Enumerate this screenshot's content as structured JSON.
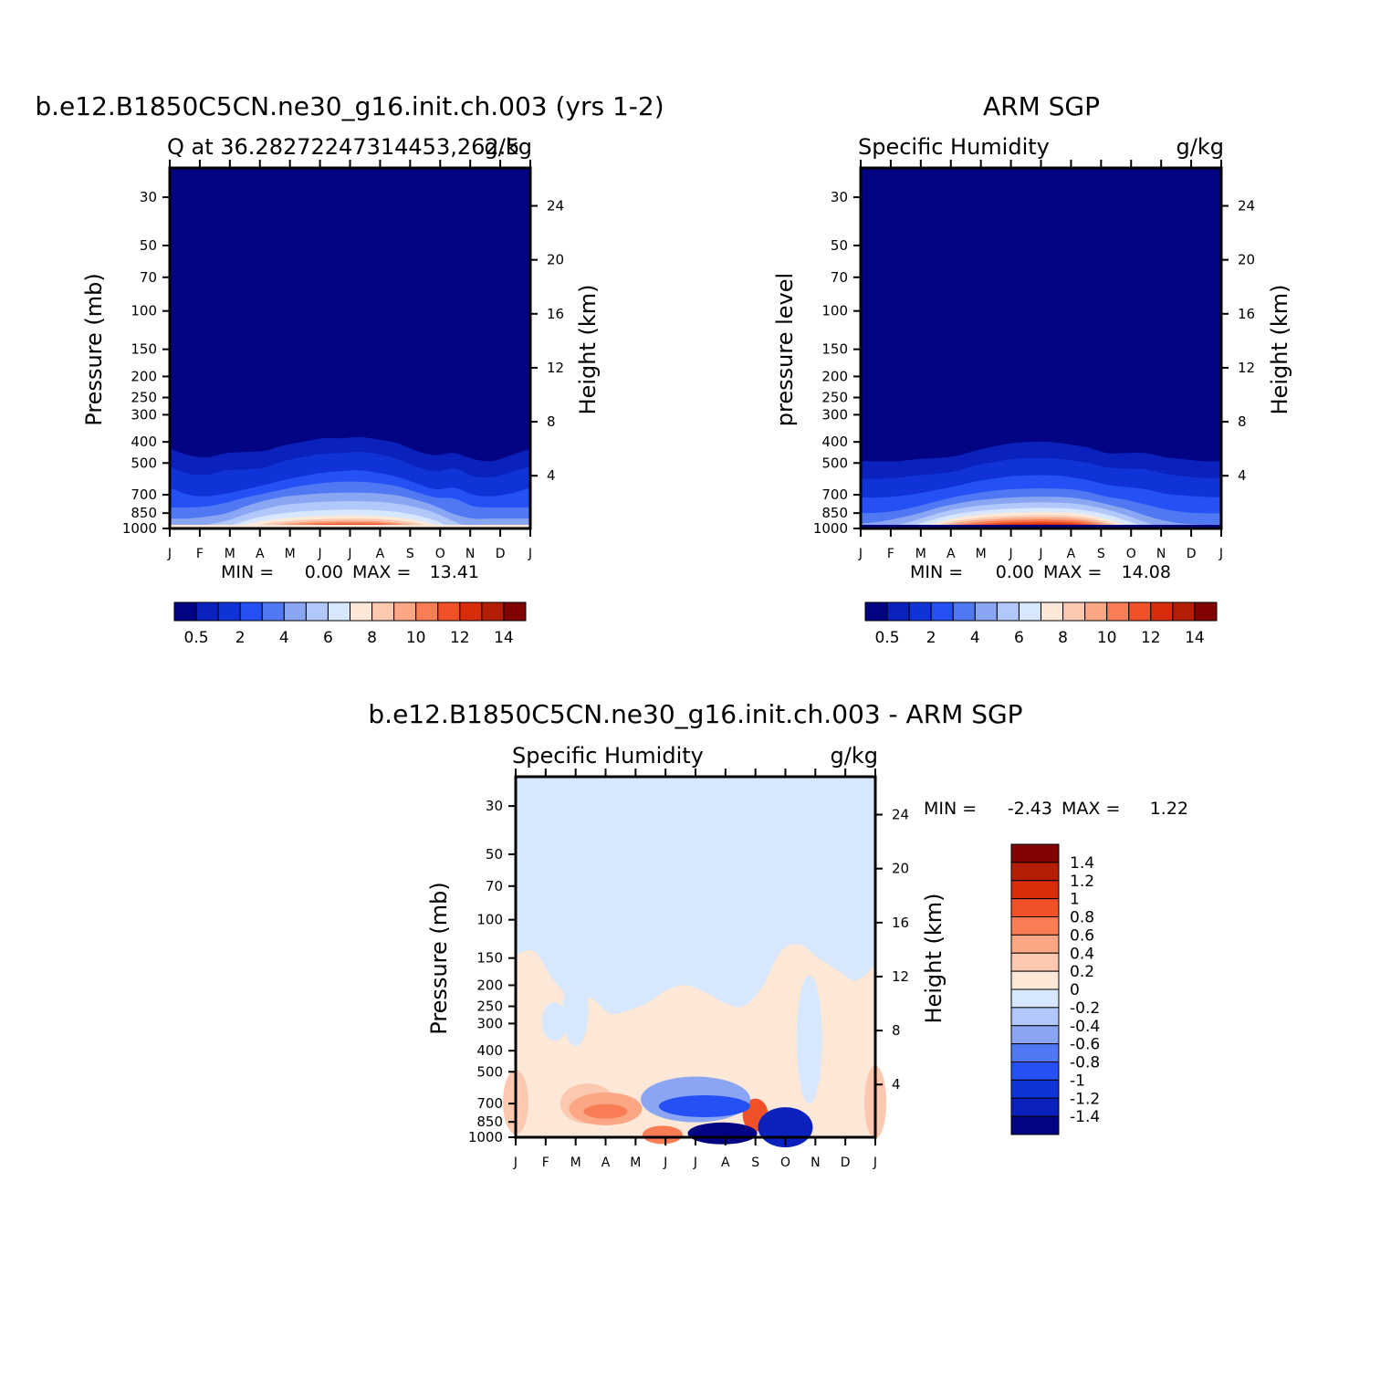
{
  "chart_data": [
    {
      "type": "contour",
      "panel": "model",
      "title": "b.e12.B1850C5CN.ne30_g16.init.ch.003 (yrs 1-2)",
      "subtitle_left": "Q at 36.28272247314453,262.5",
      "units": "g/kg",
      "ylabel": "Pressure (mb)",
      "ylabel_right": "Height (km)",
      "min_label": "MIN =",
      "min": "0.00",
      "max_label": "MAX =",
      "max": "13.41",
      "y_ticks": [
        "30",
        "50",
        "70",
        "100",
        "150",
        "200",
        "250",
        "300",
        "400",
        "500",
        "700",
        "850",
        "1000"
      ],
      "height_ticks": [
        "24",
        "20",
        "16",
        "12",
        "8",
        "4"
      ],
      "x_ticks": [
        "J",
        "F",
        "M",
        "A",
        "M",
        "J",
        "J",
        "A",
        "S",
        "O",
        "N",
        "D",
        "J"
      ],
      "colorbar_labels": [
        "0.5",
        "2",
        "4",
        "6",
        "8",
        "10",
        "12",
        "14"
      ],
      "colorbar_colors": [
        "#020483",
        "#0a21bb",
        "#0f33d6",
        "#2450f5",
        "#4f78f2",
        "#8aa6f3",
        "#b3c8fa",
        "#d7e8fe",
        "#fde7d7",
        "#fcc8af",
        "#fba684",
        "#f87d55",
        "#f05129",
        "#d92c0b",
        "#b31f05",
        "#800301"
      ],
      "bands_p": [
        [
          430,
          460,
          470,
          450,
          445,
          440,
          415,
          400,
          385,
          385,
          380,
          390,
          405,
          440,
          460,
          450,
          480,
          490,
          460,
          430
        ],
        [
          520,
          560,
          565,
          540,
          535,
          525,
          490,
          470,
          455,
          450,
          445,
          455,
          480,
          520,
          545,
          530,
          575,
          580,
          550,
          520
        ],
        [
          650,
          700,
          710,
          690,
          660,
          630,
          600,
          575,
          555,
          545,
          540,
          555,
          580,
          620,
          660,
          650,
          700,
          710,
          690,
          650
        ],
        [
          800,
          800,
          790,
          760,
          720,
          690,
          660,
          635,
          620,
          610,
          610,
          620,
          640,
          680,
          720,
          730,
          790,
          800,
          800,
          800
        ],
        [
          900,
          900,
          880,
          850,
          790,
          745,
          715,
          700,
          690,
          685,
          685,
          690,
          705,
          740,
          790,
          860,
          900,
          900,
          900,
          900
        ],
        [
          1000,
          1000,
          960,
          920,
          860,
          815,
          780,
          765,
          755,
          750,
          750,
          755,
          770,
          800,
          850,
          930,
          1000,
          1000,
          1000,
          1000
        ],
        [
          1000,
          1000,
          1000,
          980,
          920,
          875,
          850,
          835,
          825,
          820,
          820,
          825,
          840,
          870,
          920,
          1000,
          1000,
          1000,
          1000,
          1000
        ],
        [
          1000,
          1000,
          1000,
          1000,
          960,
          920,
          900,
          885,
          875,
          870,
          870,
          875,
          890,
          915,
          960,
          1000,
          1000,
          1000,
          1000,
          1000
        ],
        [
          1000,
          1000,
          1000,
          1000,
          1000,
          950,
          930,
          915,
          905,
          902,
          902,
          905,
          920,
          945,
          990,
          1000,
          1000,
          1000,
          1000,
          1000
        ],
        [
          1000,
          1000,
          1000,
          1000,
          1000,
          975,
          950,
          935,
          925,
          922,
          922,
          925,
          940,
          965,
          1000,
          1000,
          1000,
          1000,
          1000,
          1000
        ],
        [
          1000,
          1000,
          1000,
          1000,
          1000,
          990,
          965,
          950,
          940,
          937,
          937,
          940,
          955,
          980,
          1000,
          1000,
          1000,
          1000,
          1000,
          1000
        ],
        [
          1000,
          1000,
          1000,
          1000,
          1000,
          1000,
          980,
          965,
          955,
          952,
          952,
          955,
          970,
          995,
          1000,
          1000,
          1000,
          1000,
          1000,
          1000
        ],
        [
          1000,
          1000,
          1000,
          1000,
          1000,
          1000,
          992,
          980,
          970,
          967,
          967,
          970,
          985,
          1000,
          1000,
          1000,
          1000,
          1000,
          1000,
          1000
        ],
        [
          1000,
          1000,
          1000,
          1000,
          1000,
          1000,
          1000,
          995,
          988,
          985,
          985,
          988,
          1000,
          1000,
          1000,
          1000,
          1000,
          1000,
          1000,
          1000
        ]
      ],
      "bottom_fill": "#fde7d7"
    },
    {
      "type": "contour",
      "panel": "obs",
      "title": "ARM SGP",
      "subtitle_left": "Specific Humidity",
      "units": "g/kg",
      "ylabel": "pressure level",
      "ylabel_right": "Height (km)",
      "min_label": "MIN =",
      "min": "0.00",
      "max_label": "MAX =",
      "max": "14.08",
      "y_ticks": [
        "30",
        "50",
        "70",
        "100",
        "150",
        "200",
        "250",
        "300",
        "400",
        "500",
        "700",
        "850",
        "1000"
      ],
      "height_ticks": [
        "24",
        "20",
        "16",
        "12",
        "8",
        "4"
      ],
      "x_ticks": [
        "J",
        "F",
        "M",
        "A",
        "M",
        "J",
        "J",
        "A",
        "S",
        "O",
        "N",
        "D",
        "J"
      ],
      "colorbar_labels": [
        "0.5",
        "2",
        "4",
        "6",
        "8",
        "10",
        "12",
        "14"
      ],
      "colorbar_colors": [
        "#020483",
        "#0a21bb",
        "#0f33d6",
        "#2450f5",
        "#4f78f2",
        "#8aa6f3",
        "#b3c8fa",
        "#d7e8fe",
        "#fde7d7",
        "#fcc8af",
        "#fba684",
        "#f87d55",
        "#f05129",
        "#d92c0b",
        "#b31f05",
        "#800301"
      ],
      "bands_p": [
        [
          490,
          490,
          490,
          480,
          475,
          465,
          440,
          420,
          405,
          400,
          400,
          410,
          425,
          450,
          450,
          450,
          470,
          480,
          490,
          490
        ],
        [
          590,
          590,
          585,
          570,
          560,
          545,
          515,
          495,
          480,
          475,
          475,
          485,
          500,
          525,
          530,
          535,
          560,
          575,
          585,
          590
        ],
        [
          720,
          720,
          710,
          690,
          665,
          640,
          610,
          590,
          575,
          570,
          570,
          580,
          600,
          630,
          645,
          660,
          690,
          705,
          715,
          720
        ],
        [
          850,
          845,
          825,
          790,
          750,
          715,
          690,
          670,
          660,
          655,
          655,
          660,
          680,
          715,
          740,
          775,
          815,
          840,
          850,
          850
        ],
        [
          950,
          930,
          895,
          855,
          805,
          770,
          745,
          730,
          720,
          715,
          715,
          720,
          740,
          775,
          815,
          870,
          920,
          950,
          960,
          960
        ],
        [
          1000,
          1000,
          960,
          910,
          855,
          815,
          790,
          775,
          765,
          760,
          760,
          765,
          785,
          820,
          870,
          935,
          990,
          1000,
          1000,
          1000
        ],
        [
          1000,
          1000,
          1000,
          955,
          900,
          860,
          835,
          820,
          810,
          805,
          805,
          810,
          830,
          865,
          920,
          985,
          1000,
          1000,
          1000,
          1000
        ],
        [
          1000,
          1000,
          1000,
          990,
          940,
          895,
          870,
          855,
          845,
          840,
          840,
          845,
          865,
          905,
          960,
          1000,
          1000,
          1000,
          1000,
          1000
        ],
        [
          1000,
          1000,
          1000,
          1000,
          970,
          925,
          900,
          885,
          875,
          870,
          870,
          875,
          895,
          935,
          990,
          1000,
          1000,
          1000,
          1000,
          1000
        ],
        [
          1000,
          1000,
          1000,
          1000,
          990,
          945,
          920,
          905,
          895,
          890,
          890,
          895,
          915,
          955,
          1000,
          1000,
          1000,
          1000,
          1000,
          1000
        ],
        [
          1000,
          1000,
          1000,
          1000,
          1000,
          965,
          940,
          925,
          915,
          910,
          910,
          915,
          935,
          975,
          1000,
          1000,
          1000,
          1000,
          1000,
          1000
        ],
        [
          1000,
          1000,
          1000,
          1000,
          1000,
          985,
          960,
          945,
          935,
          930,
          930,
          935,
          955,
          990,
          1000,
          1000,
          1000,
          1000,
          1000,
          1000
        ],
        [
          1000,
          1000,
          1000,
          1000,
          1000,
          1000,
          978,
          962,
          952,
          948,
          948,
          952,
          972,
          1000,
          1000,
          1000,
          1000,
          1000,
          1000,
          1000
        ],
        [
          1000,
          1000,
          1000,
          1000,
          1000,
          1000,
          992,
          978,
          968,
          962,
          962,
          968,
          988,
          1000,
          1000,
          1000,
          1000,
          1000,
          1000,
          1000
        ],
        [
          1000,
          1000,
          1000,
          1000,
          1000,
          1000,
          1000,
          992,
          984,
          978,
          978,
          984,
          1000,
          1000,
          1000,
          1000,
          1000,
          1000,
          1000,
          1000
        ]
      ],
      "bottom_fill": "#020483"
    },
    {
      "type": "contour",
      "panel": "difference",
      "title": "b.e12.B1850C5CN.ne30_g16.init.ch.003 - ARM SGP",
      "subtitle_left": "Specific Humidity",
      "units": "g/kg",
      "ylabel": "Pressure (mb)",
      "ylabel_right": "Height (km)",
      "min_label": "MIN =",
      "min": "-2.43",
      "max_label": "MAX =",
      "max": "1.22",
      "y_ticks": [
        "30",
        "50",
        "70",
        "100",
        "150",
        "200",
        "250",
        "300",
        "400",
        "500",
        "700",
        "850",
        "1000"
      ],
      "height_ticks": [
        "24",
        "20",
        "16",
        "12",
        "8",
        "4"
      ],
      "x_ticks": [
        "J",
        "F",
        "M",
        "A",
        "M",
        "J",
        "J",
        "A",
        "S",
        "O",
        "N",
        "D",
        "J"
      ],
      "colorbar_labels": [
        "1.4",
        "1.2",
        "1",
        "0.8",
        "0.6",
        "0.4",
        "0.2",
        "0",
        "-0.2",
        "-0.4",
        "-0.6",
        "-0.8",
        "-1",
        "-1.2",
        "-1.4"
      ],
      "colorbar_colors": [
        "#800301",
        "#b31f05",
        "#d92c0b",
        "#f05129",
        "#f87d55",
        "#fba684",
        "#fcc8af",
        "#fde7d7",
        "#d7e8fe",
        "#b3c8fa",
        "#8aa6f3",
        "#4f78f2",
        "#2450f5",
        "#0f33d6",
        "#0a21bb",
        "#020483"
      ],
      "background": "#d7e8fe",
      "positive_region_top_p": [
        145,
        140,
        190,
        230,
        230,
        270,
        260,
        240,
        210,
        200,
        215,
        240,
        250,
        205,
        140,
        130,
        150,
        170,
        190,
        160
      ],
      "blue_holes": [
        {
          "month": 1.3,
          "p_top": 240,
          "p_bottom": 360,
          "color": "#d7e8fe"
        },
        {
          "month": 2.0,
          "p_top": 180,
          "p_bottom": 380,
          "color": "#d7e8fe"
        },
        {
          "month": 9.8,
          "p_top": 180,
          "p_bottom": 700,
          "color": "#d7e8fe"
        }
      ],
      "pos_blobs": [
        {
          "month": 0.0,
          "p": 690,
          "color": "#fcc8af"
        },
        {
          "month": 2.4,
          "p": 700,
          "color": "#fcc8af"
        },
        {
          "month": 3.0,
          "p": 740,
          "color": "#fba684"
        },
        {
          "month": 3.0,
          "p": 760,
          "color": "#f87d55"
        },
        {
          "month": 4.9,
          "p": 975,
          "color": "#f87d55"
        },
        {
          "month": 8.0,
          "p": 790,
          "color": "#f05129"
        },
        {
          "month": 12.0,
          "p": 690,
          "color": "#fcc8af"
        }
      ],
      "neg_blobs": [
        {
          "month": 6.0,
          "p": 670,
          "color": "#8aa6f3"
        },
        {
          "month": 6.3,
          "p": 720,
          "color": "#2450f5"
        },
        {
          "month": 6.9,
          "p": 960,
          "color": "#020483"
        },
        {
          "month": 9.0,
          "p": 900,
          "color": "#0a21bb"
        }
      ]
    }
  ]
}
